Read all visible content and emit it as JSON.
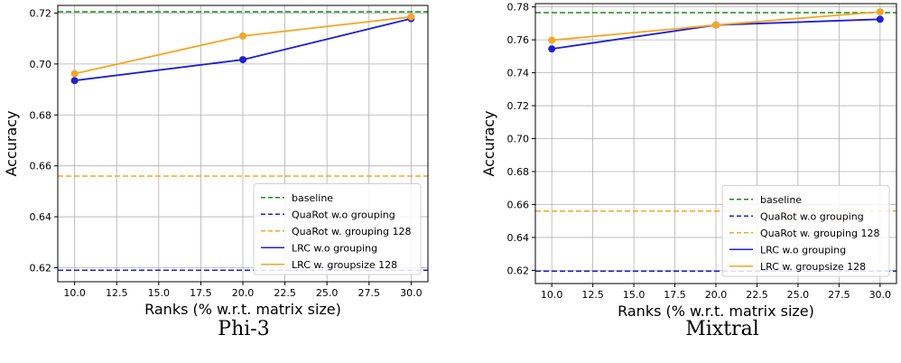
{
  "captions": [
    "Phi-3",
    "Mixtral"
  ],
  "chart_data": [
    {
      "type": "line",
      "title": "",
      "xlabel": "Ranks (% w.r.t. matrix size)",
      "ylabel": "Accuracy",
      "xlim": [
        9.0,
        31.0
      ],
      "ylim": [
        0.6145,
        0.723
      ],
      "xticks": [
        10.0,
        12.5,
        15.0,
        17.5,
        20.0,
        22.5,
        25.0,
        27.5,
        30.0
      ],
      "xtick_labels": [
        "10.0",
        "12.5",
        "15.0",
        "17.5",
        "20.0",
        "22.5",
        "25.0",
        "27.5",
        "30.0"
      ],
      "yticks": [
        0.62,
        0.64,
        0.66,
        0.68,
        0.7,
        0.72
      ],
      "ytick_labels": [
        "0.62",
        "0.64",
        "0.66",
        "0.68",
        "0.70",
        "0.72"
      ],
      "grid": true,
      "legend_position": "lower-right",
      "hlines": [
        {
          "name": "baseline",
          "y": 0.7205,
          "color": "#1a8a1a",
          "style": "dashed"
        },
        {
          "name": "QuaRot w.o grouping",
          "y": 0.619,
          "color": "#1f1fd6",
          "style": "dashed"
        },
        {
          "name": "QuaRot w. grouping 128",
          "y": 0.656,
          "color": "#f5a623",
          "style": "dashed"
        }
      ],
      "series": [
        {
          "name": "LRC w.o grouping",
          "color": "#1f1fd6",
          "x": [
            10,
            20,
            30
          ],
          "y": [
            0.6935,
            0.7017,
            0.7178
          ]
        },
        {
          "name": "LRC w. groupsize 128",
          "color": "#f5a623",
          "x": [
            10,
            20,
            30
          ],
          "y": [
            0.6962,
            0.711,
            0.7185
          ]
        }
      ]
    },
    {
      "type": "line",
      "title": "",
      "xlabel": "Ranks (% w.r.t. matrix size)",
      "ylabel": "Accuracy",
      "xlim": [
        9.0,
        31.0
      ],
      "ylim": [
        0.612,
        0.782
      ],
      "xticks": [
        10.0,
        12.5,
        15.0,
        17.5,
        20.0,
        22.5,
        25.0,
        27.5,
        30.0
      ],
      "xtick_labels": [
        "10.0",
        "12.5",
        "15.0",
        "17.5",
        "20.0",
        "22.5",
        "25.0",
        "27.5",
        "30.0"
      ],
      "yticks": [
        0.62,
        0.64,
        0.66,
        0.68,
        0.7,
        0.72,
        0.74,
        0.76,
        0.78
      ],
      "ytick_labels": [
        "0.62",
        "0.64",
        "0.66",
        "0.68",
        "0.70",
        "0.72",
        "0.74",
        "0.76",
        "0.78"
      ],
      "grid": true,
      "legend_position": "lower-right",
      "hlines": [
        {
          "name": "baseline",
          "y": 0.7765,
          "color": "#1a8a1a",
          "style": "dashed"
        },
        {
          "name": "QuaRot w.o grouping",
          "y": 0.6195,
          "color": "#1f1fd6",
          "style": "dashed"
        },
        {
          "name": "QuaRot w. grouping 128",
          "y": 0.656,
          "color": "#f5a623",
          "style": "dashed"
        }
      ],
      "series": [
        {
          "name": "LRC w.o grouping",
          "color": "#1f1fd6",
          "x": [
            10,
            20,
            30
          ],
          "y": [
            0.7545,
            0.769,
            0.7725
          ]
        },
        {
          "name": "LRC w. groupsize 128",
          "color": "#f5a623",
          "x": [
            10,
            20,
            30
          ],
          "y": [
            0.7598,
            0.769,
            0.777
          ]
        }
      ]
    }
  ]
}
